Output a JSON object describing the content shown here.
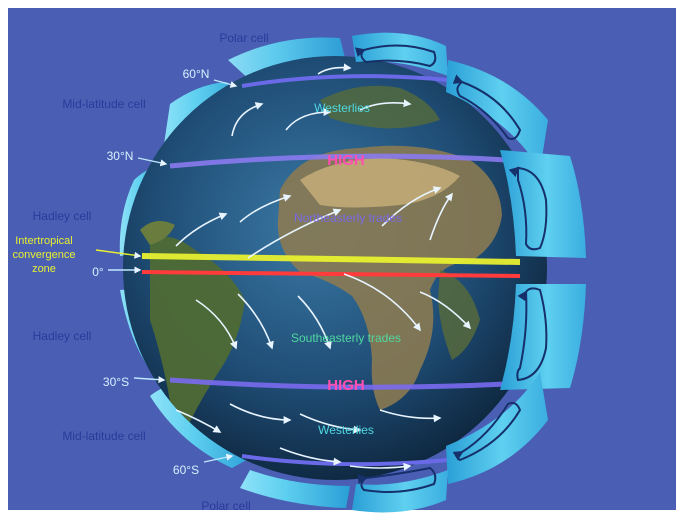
{
  "cells": {
    "polar_north": "Polar cell",
    "mid_lat_north": "Mid-latitude cell",
    "hadley_north": "Hadley cell",
    "hadley_south": "Hadley cell",
    "mid_lat_south": "Mid-latitude cell",
    "polar_south": "Polar cell"
  },
  "latitudes": {
    "n60": "60°N",
    "n30": "30°N",
    "eq": "0°",
    "s30": "30°S",
    "s60": "60°S"
  },
  "itcz": {
    "line1": "Intertropical",
    "line2": "convergence",
    "line3": "zone"
  },
  "winds": {
    "westerlies_north": "Westerlies",
    "ne_trades": "Northeasterly trades",
    "se_trades": "Southeasterly trades",
    "westerlies_south": "Westerlies"
  },
  "pressure": {
    "north": "HIGH",
    "south": "HIGH"
  },
  "colors": {
    "background": "#4a5fb4",
    "ocean": "#1e4b73",
    "cell": "#4fc3e8",
    "equator_line": "#ff3b3b",
    "itcz_line": "#e8f030",
    "latitude_line": "#6a6ae8",
    "high_label": "#ff4fb0"
  }
}
